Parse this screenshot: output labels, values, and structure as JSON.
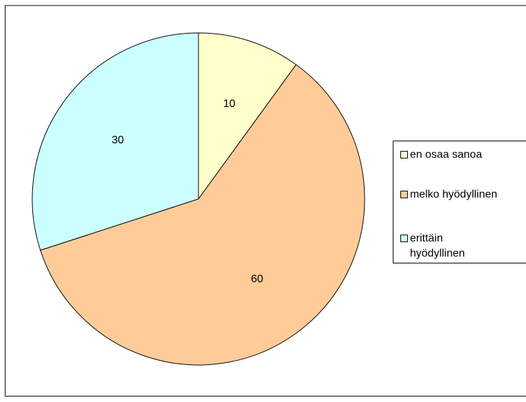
{
  "chart_data": {
    "type": "pie",
    "categories": [
      "en osaa sanoa",
      "melko hyödyllinen",
      "erittäin hyödyllinen"
    ],
    "values": [
      10,
      60,
      30
    ],
    "colors": [
      "#FFFFCC",
      "#FFCC99",
      "#CCFFFF"
    ],
    "legend": "right"
  }
}
